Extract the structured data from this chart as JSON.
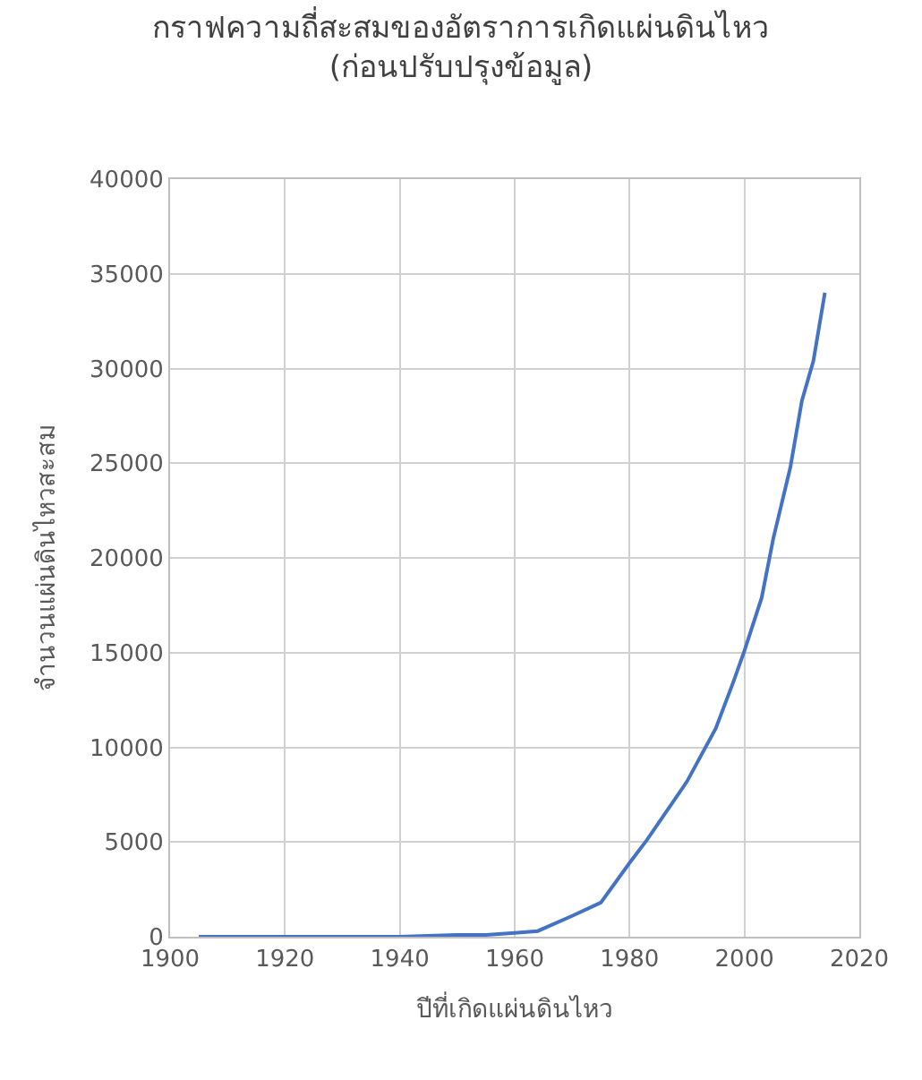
{
  "chart_data": {
    "type": "line",
    "title": "กราฟความถี่สะสมของอัตราการเกิดแผ่นดินไหว",
    "subtitle": "(ก่อนปรับปรุงข้อมูล)",
    "xlabel": "ปีที่เกิดแผ่นดินไหว",
    "ylabel": "จำนวนแผ่นดินไหวสะสม",
    "x": [
      1905,
      1920,
      1940,
      1950,
      1955,
      1960,
      1964,
      1970,
      1975,
      1980,
      1983,
      1990,
      1995,
      1998,
      2000,
      2003,
      2005,
      2008,
      2010,
      2012,
      2014
    ],
    "series": [
      {
        "color": "#4472c4",
        "values": [
          0,
          0,
          0,
          100,
          100,
          200,
          300,
          1100,
          1800,
          3900,
          5100,
          8200,
          11000,
          13400,
          15100,
          17900,
          21000,
          24800,
          28300,
          30400,
          34000
        ]
      }
    ],
    "xlim": [
      1900,
      2020
    ],
    "xticks": [
      1900,
      1920,
      1940,
      1960,
      1980,
      2000,
      2020
    ],
    "ylim": [
      0,
      40000
    ],
    "yticks": [
      0,
      5000,
      10000,
      15000,
      20000,
      25000,
      30000,
      35000,
      40000
    ],
    "grid": true,
    "marker": "none",
    "line_style": "solid"
  }
}
